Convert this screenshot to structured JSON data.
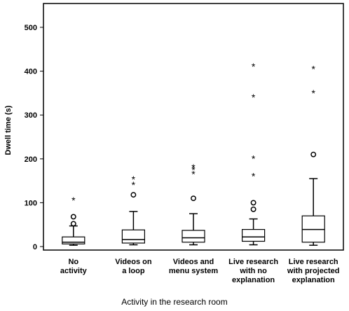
{
  "chart_data": {
    "type": "boxplot",
    "title": "",
    "xlabel": "Activity in the research room",
    "ylabel": "Dwell time (s)",
    "ylim": [
      0,
      550
    ],
    "yticks": [
      0,
      100,
      200,
      300,
      400,
      500
    ],
    "grid": false,
    "categories": [
      "No\nactivity",
      "Videos on\na loop",
      "Videos and\nmenu system",
      "Live research\nwith no\nexplanation",
      "Live research\nwith projected\nexplanation"
    ],
    "boxes": [
      {
        "min": 3,
        "q1": 6,
        "median": 10,
        "q3": 22,
        "max": 47,
        "outliers": [
          52,
          68
        ],
        "extremes": [
          110
        ]
      },
      {
        "min": 4,
        "q1": 8,
        "median": 16,
        "q3": 38,
        "max": 80,
        "outliers": [
          118
        ],
        "extremes": [
          145,
          158
        ]
      },
      {
        "min": 4,
        "q1": 10,
        "median": 20,
        "q3": 37,
        "max": 75,
        "outliers": [
          110
        ],
        "extremes": [
          170,
          180,
          185
        ]
      },
      {
        "min": 4,
        "q1": 12,
        "median": 22,
        "q3": 39,
        "max": 63,
        "outliers": [
          85,
          100
        ],
        "extremes": [
          165,
          205,
          345,
          415
        ]
      },
      {
        "min": 3,
        "q1": 10,
        "median": 39,
        "q3": 70,
        "max": 155,
        "outliers": [
          210
        ],
        "extremes": [
          355,
          410
        ]
      }
    ]
  }
}
